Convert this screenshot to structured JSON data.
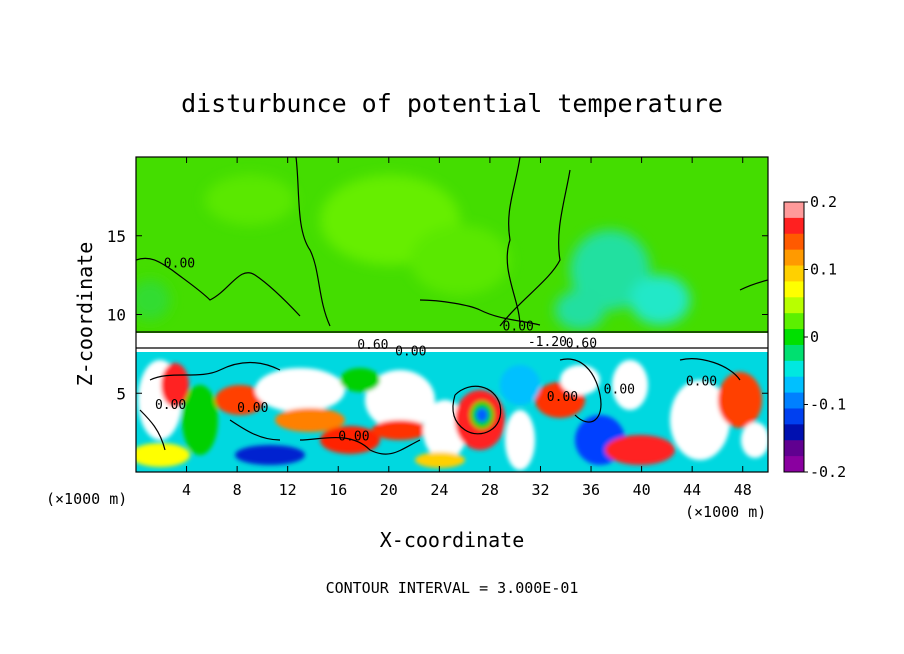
{
  "chart_data": {
    "type": "heatmap",
    "title": "disturbunce of potential temperature",
    "xlabel": "X-coordinate",
    "ylabel": "Z-coordinate",
    "x_unit": "(×1000 m)",
    "z_unit": "(×1000 m)",
    "xlim": [
      0,
      50
    ],
    "ylim": [
      0,
      20
    ],
    "x_ticks": [
      4,
      8,
      12,
      16,
      20,
      24,
      28,
      32,
      36,
      40,
      44,
      48
    ],
    "y_ticks": [
      5,
      10,
      15
    ],
    "colorbar": {
      "range": [
        -0.2,
        0.2
      ],
      "tick_values": [
        0.2,
        0.1,
        0,
        -0.1,
        -0.2
      ],
      "tick_labels": [
        "0.2",
        "0.1",
        "0",
        "-0.1",
        "-0.2"
      ],
      "colors": [
        "#ff9a9a",
        "#ff2020",
        "#ff5a00",
        "#ff9a00",
        "#ffd000",
        "#ffff00",
        "#b8ff00",
        "#5cf000",
        "#00e000",
        "#00e070",
        "#00e8e0",
        "#00c0ff",
        "#0080ff",
        "#0040f0",
        "#0010b0",
        "#600090",
        "#8a00a0"
      ]
    },
    "contour_labels": [
      {
        "text": "0.00",
        "x": 2.2,
        "z": 13.0
      },
      {
        "text": "0.60",
        "x": 17.5,
        "z": 7.8
      },
      {
        "text": "0.00",
        "x": 20.5,
        "z": 7.4
      },
      {
        "text": "0.00",
        "x": 29.0,
        "z": 9.0
      },
      {
        "text": "-1.20",
        "x": 31.0,
        "z": 8.0
      },
      {
        "text": "0.60",
        "x": 34.0,
        "z": 7.9
      },
      {
        "text": "0.00",
        "x": 8.0,
        "z": 3.8
      },
      {
        "text": "0.00",
        "x": 16.0,
        "z": 2.0
      },
      {
        "text": "0.00",
        "x": 32.5,
        "z": 4.5
      },
      {
        "text": "0.00",
        "x": 37.0,
        "z": 5.0
      },
      {
        "text": "0.00",
        "x": 43.5,
        "z": 5.5
      },
      {
        "text": "0.00",
        "x": 1.5,
        "z": 4.0
      }
    ],
    "contour_interval_text": "CONTOUR INTERVAL = 3.000E-01"
  }
}
